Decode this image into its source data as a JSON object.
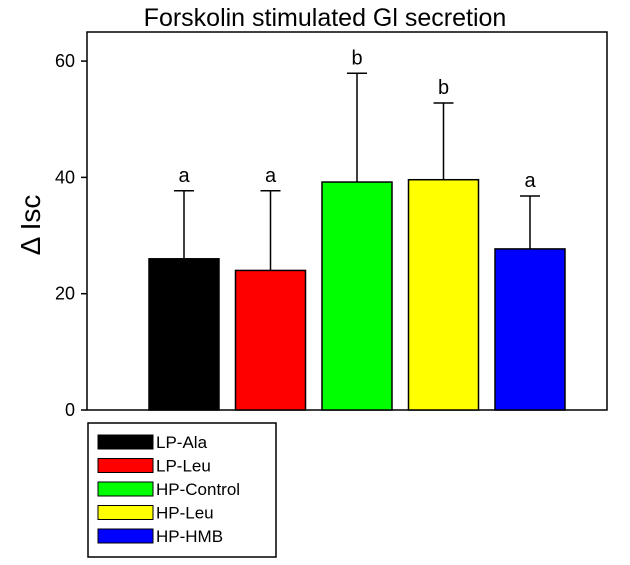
{
  "chart_data": {
    "type": "bar",
    "title": "Forskolin stimulated Gl secretion",
    "xlabel": "",
    "ylabel": "Δ Isc",
    "ylim": [
      0,
      65
    ],
    "yticks": [
      0,
      20,
      40,
      60
    ],
    "grid": false,
    "legend_position": "bottom-left",
    "categories": [
      "LP-Ala",
      "LP-Leu",
      "HP-Control",
      "HP-Leu",
      "HP-HMB"
    ],
    "values": [
      26,
      24,
      39.2,
      39.6,
      27.7
    ],
    "error_upper": [
      11.7,
      13.7,
      18.7,
      13.2,
      9.1
    ],
    "significance": [
      "a",
      "a",
      "b",
      "b",
      "a"
    ],
    "colors": [
      "#000000",
      "#ff0000",
      "#00ff00",
      "#ffff00",
      "#0000ff"
    ]
  }
}
